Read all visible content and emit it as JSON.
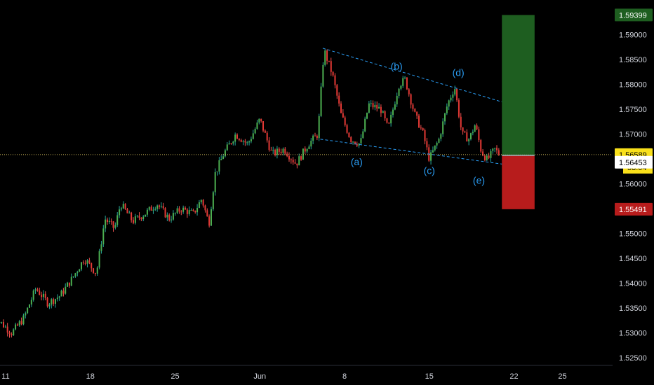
{
  "chart_data": {
    "type": "candlestick",
    "title": "",
    "grid": false,
    "y_axis": {
      "position": "right",
      "range": [
        1.5225,
        1.5963
      ],
      "ticks": [
        "1.52500",
        "1.53000",
        "1.53500",
        "1.54000",
        "1.54500",
        "1.55000",
        "1.55500",
        "1.56000",
        "1.56500",
        "1.57000",
        "1.57500",
        "1.58000",
        "1.58500",
        "1.59000"
      ]
    },
    "x_axis": {
      "ticks": [
        {
          "label": "11",
          "day": 11
        },
        {
          "label": "18",
          "day": 18
        },
        {
          "label": "25",
          "day": 25
        },
        {
          "label": "Jun",
          "day": 32
        },
        {
          "label": "8",
          "day": 39
        },
        {
          "label": "15",
          "day": 46
        },
        {
          "label": "22",
          "day": 53
        },
        {
          "label": "25",
          "day": 57
        }
      ]
    },
    "price_path": [
      [
        10.0,
        1.5335
      ],
      [
        11.5,
        1.53
      ],
      [
        12.5,
        1.533
      ],
      [
        13.5,
        1.539
      ],
      [
        14.5,
        1.536
      ],
      [
        15.5,
        1.5375
      ],
      [
        16.5,
        1.541
      ],
      [
        17.5,
        1.545
      ],
      [
        18.5,
        1.542
      ],
      [
        19.2,
        1.553
      ],
      [
        20.0,
        1.551
      ],
      [
        20.5,
        1.556
      ],
      [
        21.5,
        1.5525
      ],
      [
        22.5,
        1.554
      ],
      [
        23.5,
        1.556
      ],
      [
        24.5,
        1.553
      ],
      [
        25.5,
        1.555
      ],
      [
        26.5,
        1.554
      ],
      [
        27.2,
        1.557
      ],
      [
        27.8,
        1.552
      ],
      [
        28.3,
        1.562
      ],
      [
        29.0,
        1.566
      ],
      [
        30.0,
        1.57
      ],
      [
        31.0,
        1.568
      ],
      [
        32.0,
        1.573
      ],
      [
        33.0,
        1.566
      ],
      [
        34.0,
        1.567
      ],
      [
        35.0,
        1.564
      ],
      [
        36.0,
        1.568
      ],
      [
        36.8,
        1.57
      ],
      [
        37.3,
        1.587
      ],
      [
        38.0,
        1.582
      ],
      [
        38.7,
        1.574
      ],
      [
        39.5,
        1.569
      ],
      [
        40.3,
        1.568
      ],
      [
        41.0,
        1.576
      ],
      [
        42.0,
        1.575
      ],
      [
        42.6,
        1.571
      ],
      [
        43.5,
        1.58
      ],
      [
        44.0,
        1.581
      ],
      [
        44.8,
        1.574
      ],
      [
        45.5,
        1.57
      ],
      [
        46.0,
        1.565
      ],
      [
        46.8,
        1.569
      ],
      [
        47.5,
        1.576
      ],
      [
        48.1,
        1.5795
      ],
      [
        48.7,
        1.57
      ],
      [
        49.3,
        1.569
      ],
      [
        49.8,
        1.572
      ],
      [
        50.3,
        1.5665
      ],
      [
        50.8,
        1.5648
      ],
      [
        51.4,
        1.567
      ],
      [
        51.8,
        1.5659
      ]
    ],
    "current_price": "1.56589",
    "countdown": "53:04",
    "last_close": "1.56453",
    "position_tool": {
      "target": "1.59399",
      "stop": "1.55491",
      "entry": 1.56589,
      "day_start": 52.0,
      "day_end": 54.7,
      "target_color": "#1e5e20",
      "stop_color": "#b71c1c"
    },
    "channel_lines": [
      {
        "from": [
          37.2,
          1.5873
        ],
        "to": [
          52.0,
          1.5765
        ]
      },
      {
        "from": [
          37.0,
          1.569
        ],
        "to": [
          52.0,
          1.564
        ]
      }
    ],
    "wave_labels": [
      {
        "text": "(a)",
        "day": 40.0,
        "price": 1.5638
      },
      {
        "text": "(b)",
        "day": 43.3,
        "price": 1.583
      },
      {
        "text": "(c)",
        "day": 46.0,
        "price": 1.562
      },
      {
        "text": "(d)",
        "day": 48.4,
        "price": 1.5817
      },
      {
        "text": "(e)",
        "day": 50.1,
        "price": 1.56
      }
    ],
    "colors": {
      "up": "#26a69a",
      "down": "#ef5350",
      "bull_body": "#4caf50",
      "bear_body": "#e53935",
      "wave": "#2a9df4",
      "axis_text": "#d1d4dc",
      "price_badge": "#f9e01b",
      "last_badge": "#ffffff"
    }
  }
}
